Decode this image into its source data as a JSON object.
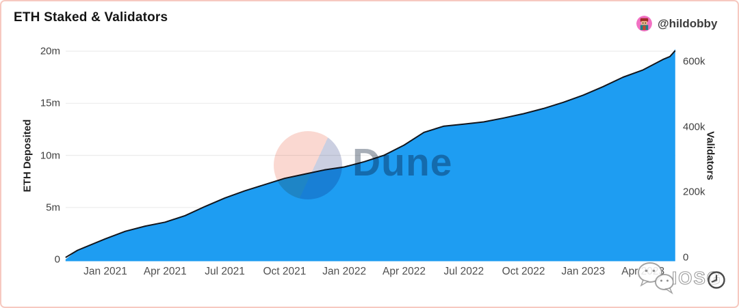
{
  "header": {
    "title": "ETH Staked & Validators",
    "author_handle": "@hildobby",
    "avatar_icon": "pixel-character-avatar"
  },
  "chart_data": {
    "type": "area",
    "title": "ETH Staked & Validators",
    "grid": true,
    "legend": "none",
    "x_axis": {
      "unit": "month",
      "range": [
        "2020-11-01",
        "2023-05-20"
      ],
      "ticks": [
        {
          "label": "Jan 2021",
          "m": 2
        },
        {
          "label": "Apr 2021",
          "m": 5
        },
        {
          "label": "Jul 2021",
          "m": 8
        },
        {
          "label": "Oct 2021",
          "m": 11
        },
        {
          "label": "Jan 2022",
          "m": 14
        },
        {
          "label": "Apr 2022",
          "m": 17
        },
        {
          "label": "Jul 2022",
          "m": 20
        },
        {
          "label": "Oct 2022",
          "m": 23
        },
        {
          "label": "Jan 2023",
          "m": 26
        },
        {
          "label": "Apr 2023",
          "m": 29
        }
      ]
    },
    "y_left": {
      "label": "ETH Deposited",
      "unit": "million ETH",
      "range": [
        0,
        20.4
      ],
      "ticks": [
        {
          "label": "0",
          "value": 0
        },
        {
          "label": "5m",
          "value": 5
        },
        {
          "label": "10m",
          "value": 10
        },
        {
          "label": "15m",
          "value": 15
        },
        {
          "label": "20m",
          "value": 20
        }
      ]
    },
    "y_right": {
      "label": "Validators",
      "unit": "thousand validators",
      "range": [
        0,
        640
      ],
      "ticks": [
        {
          "label": "0",
          "value": 0
        },
        {
          "label": "200k",
          "value": 200
        },
        {
          "label": "400k",
          "value": 400
        },
        {
          "label": "600k",
          "value": 600
        }
      ]
    },
    "x": {
      "m": [
        0,
        0.6,
        1,
        2,
        3,
        4,
        5,
        6,
        7,
        8,
        9,
        10,
        11,
        12,
        13,
        14,
        15,
        16,
        17,
        18,
        19,
        20,
        21,
        22,
        23,
        24,
        25,
        26,
        27,
        28,
        29,
        30,
        30.35,
        30.62
      ],
      "dates": [
        "2020-11-01",
        "2020-11-19",
        "2020-12-01",
        "2021-01-01",
        "2021-02-01",
        "2021-03-01",
        "2021-04-01",
        "2021-05-01",
        "2021-06-01",
        "2021-07-01",
        "2021-08-01",
        "2021-09-01",
        "2021-10-01",
        "2021-11-01",
        "2021-12-01",
        "2022-01-01",
        "2022-02-01",
        "2022-03-01",
        "2022-04-01",
        "2022-05-01",
        "2022-06-01",
        "2022-07-01",
        "2022-08-01",
        "2022-09-01",
        "2022-10-01",
        "2022-11-01",
        "2022-12-01",
        "2023-01-01",
        "2023-02-01",
        "2023-03-01",
        "2023-04-01",
        "2023-05-01",
        "2023-05-11",
        "2023-05-20"
      ]
    },
    "series": [
      {
        "name": "ETH Deposited",
        "style": "area",
        "axis": "left",
        "color": "#1E9DF2",
        "values": [
          0.02,
          0.9,
          1.2,
          2.0,
          2.7,
          3.2,
          3.6,
          4.2,
          5.1,
          5.9,
          6.6,
          7.2,
          7.8,
          8.2,
          8.6,
          8.9,
          9.4,
          10.0,
          11.0,
          12.2,
          12.8,
          13.0,
          13.2,
          13.6,
          14.0,
          14.5,
          15.1,
          15.8,
          16.6,
          17.5,
          18.2,
          19.2,
          19.5,
          20.2
        ]
      },
      {
        "name": "Validators",
        "style": "line",
        "axis": "right",
        "color": "#12161d",
        "values": [
          0,
          22,
          32,
          57,
          80,
          96,
          108,
          128,
          156,
          182,
          204,
          223,
          242,
          255,
          268,
          277,
          293,
          313,
          344,
          383,
          402,
          408,
          415,
          427,
          440,
          456,
          475,
          497,
          523,
          552,
          574,
          606,
          615,
          633
        ]
      }
    ],
    "gridline_color": "#ececec"
  },
  "watermarks": {
    "dune_text": "Dune",
    "iosg_text": "IOSG",
    "wechat_icon": "wechat-icon",
    "clock_icon": "clock-icon"
  },
  "colors": {
    "card_border": "#f6c9c0",
    "area_fill": "#1E9DF2",
    "line_stroke": "#12161d",
    "watermark_pink": "#fad6cf"
  }
}
